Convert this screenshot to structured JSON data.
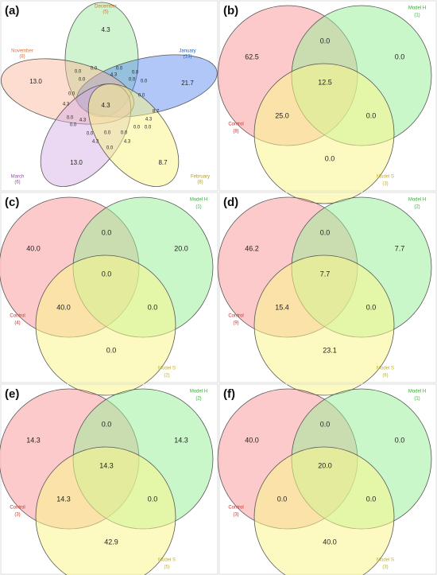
{
  "panels": [
    {
      "label": "(a)",
      "sets": [
        {
          "name": "December",
          "count": "(5)"
        },
        {
          "name": "January",
          "count": "(13)"
        },
        {
          "name": "November",
          "count": "(8)"
        },
        {
          "name": "March",
          "count": "(6)"
        },
        {
          "name": "February",
          "count": "(8)"
        }
      ],
      "regions": [
        "4.3",
        "21.7",
        "13.0",
        "13.0",
        "8.7",
        "4.3",
        "0.0",
        "0.0",
        "0.0",
        "0.0",
        "0.0",
        "4.3",
        "0.0",
        "0.0",
        "0.0",
        "0.0",
        "8.7",
        "4.3",
        "0.0",
        "0.0",
        "4.3",
        "0.0",
        "4.3",
        "0.0",
        "0.0",
        "0.0",
        "0.0",
        "4.3",
        "4.3",
        "0.0"
      ]
    },
    {
      "label": "(b)",
      "sets": [
        {
          "name": "Control",
          "count": "(8)"
        },
        {
          "name": "Model H",
          "count": "(1)"
        },
        {
          "name": "Model S",
          "count": "(3)"
        }
      ],
      "regions": [
        "62.5",
        "0.0",
        "0.0",
        "12.5",
        "25.0",
        "0.0",
        "0.0"
      ]
    },
    {
      "label": "(c)",
      "sets": [
        {
          "name": "Control",
          "count": "(4)"
        },
        {
          "name": "Model H",
          "count": "(1)"
        },
        {
          "name": "Model S",
          "count": "(2)"
        }
      ],
      "regions": [
        "40.0",
        "0.0",
        "20.0",
        "0.0",
        "40.0",
        "0.0",
        "0.0"
      ]
    },
    {
      "label": "(d)",
      "sets": [
        {
          "name": "Control",
          "count": "(9)"
        },
        {
          "name": "Model H",
          "count": "(2)"
        },
        {
          "name": "Model S",
          "count": "(6)"
        }
      ],
      "regions": [
        "46.2",
        "0.0",
        "7.7",
        "7.7",
        "15.4",
        "0.0",
        "23.1"
      ]
    },
    {
      "label": "(e)",
      "sets": [
        {
          "name": "Control",
          "count": "(3)"
        },
        {
          "name": "Model H",
          "count": "(2)"
        },
        {
          "name": "Model S",
          "count": "(5)"
        }
      ],
      "regions": [
        "14.3",
        "0.0",
        "14.3",
        "14.3",
        "14.3",
        "0.0",
        "42.9"
      ]
    },
    {
      "label": "(f)",
      "sets": [
        {
          "name": "Control",
          "count": "(3)"
        },
        {
          "name": "Model H",
          "count": "(1)"
        },
        {
          "name": "Model S",
          "count": "(3)"
        }
      ],
      "regions": [
        "40.0",
        "0.0",
        "0.0",
        "20.0",
        "0.0",
        "0.0",
        "40.0"
      ]
    }
  ]
}
